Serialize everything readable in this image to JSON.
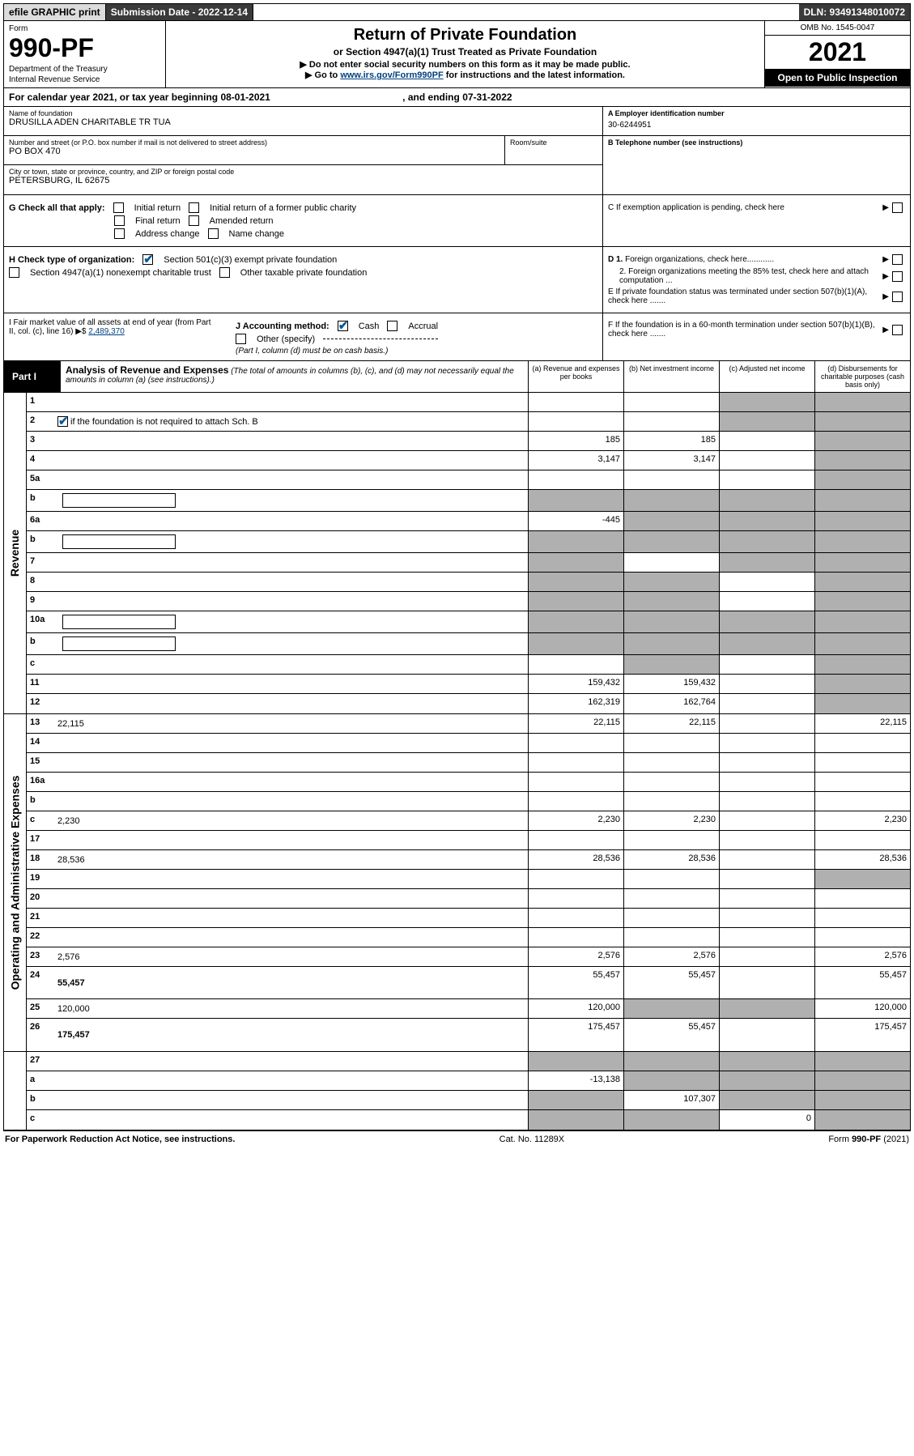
{
  "topbar": {
    "efile": "efile GRAPHIC print",
    "submission_label": "Submission Date - 2022-12-14",
    "dln": "DLN: 93491348010072"
  },
  "header": {
    "form_word": "Form",
    "form_number": "990-PF",
    "dept": "Department of the Treasury",
    "irs": "Internal Revenue Service",
    "title": "Return of Private Foundation",
    "subtitle": "or Section 4947(a)(1) Trust Treated as Private Foundation",
    "warn": "▶ Do not enter social security numbers on this form as it may be made public.",
    "goto_pre": "▶ Go to ",
    "goto_link": "www.irs.gov/Form990PF",
    "goto_post": " for instructions and the latest information.",
    "omb": "OMB No. 1545-0047",
    "year": "2021",
    "open": "Open to Public Inspection"
  },
  "cal_year": {
    "pre": "For calendar year 2021, or tax year beginning ",
    "begin": "08-01-2021",
    "mid": " , and ending ",
    "end": "07-31-2022"
  },
  "entity": {
    "name_lbl": "Name of foundation",
    "name": "DRUSILLA ADEN CHARITABLE TR TUA",
    "addr_lbl": "Number and street (or P.O. box number if mail is not delivered to street address)",
    "addr": "PO BOX 470",
    "room_lbl": "Room/suite",
    "room": "",
    "city_lbl": "City or town, state or province, country, and ZIP or foreign postal code",
    "city": "PETERSBURG, IL  62675",
    "ein_lbl": "A Employer identification number",
    "ein": "30-6244951",
    "phone_lbl": "B Telephone number (see instructions)",
    "phone": "",
    "c_lbl": "C If exemption application is pending, check here",
    "d1": "D 1. Foreign organizations, check here............",
    "d2": "2. Foreign organizations meeting the 85% test, check here and attach computation ...",
    "e_lbl": "E  If private foundation status was terminated under section 507(b)(1)(A), check here .......",
    "f_lbl": "F  If the foundation is in a 60-month termination under section 507(b)(1)(B), check here .......",
    "g_lbl": "G Check all that apply:",
    "g_opts": [
      "Initial return",
      "Initial return of a former public charity",
      "Final return",
      "Amended return",
      "Address change",
      "Name change"
    ],
    "h_lbl": "H Check type of organization:",
    "h_opts": [
      "Section 501(c)(3) exempt private foundation",
      "Section 4947(a)(1) nonexempt charitable trust",
      "Other taxable private foundation"
    ],
    "i_lbl": "I Fair market value of all assets at end of year (from Part II, col. (c), line 16) ▶$ ",
    "i_val": "2,489,370",
    "j_lbl": "J Accounting method:",
    "j_cash": "Cash",
    "j_accr": "Accrual",
    "j_other": "Other (specify)",
    "j_note": "(Part I, column (d) must be on cash basis.)"
  },
  "part1": {
    "label": "Part I",
    "title": "Analysis of Revenue and Expenses",
    "note": " (The total of amounts in columns (b), (c), and (d) may not necessarily equal the amounts in column (a) (see instructions).)",
    "col_a": "(a)  Revenue and expenses per books",
    "col_b": "(b)  Net investment income",
    "col_c": "(c)  Adjusted net income",
    "col_d": "(d)  Disbursements for charitable purposes (cash basis only)"
  },
  "rows": {
    "r1": {
      "n": "1",
      "d": "",
      "a": "",
      "b": "",
      "c": "",
      "cg": true,
      "dg": true
    },
    "r2": {
      "n": "2",
      "d": "",
      "d2": " if the foundation is not required to attach Sch. B",
      "a": "",
      "b": "",
      "c": "",
      "cg": true,
      "dg": true
    },
    "r3": {
      "n": "3",
      "d": "",
      "a": "185",
      "b": "185",
      "c": "",
      "dg": true
    },
    "r4": {
      "n": "4",
      "d": "",
      "a": "3,147",
      "b": "3,147",
      "c": "",
      "dg": true
    },
    "r5a": {
      "n": "5a",
      "d": "",
      "a": "",
      "b": "",
      "c": "",
      "dg": true
    },
    "r5b": {
      "n": "b",
      "d": "",
      "a": "",
      "b": "",
      "c": "",
      "ag": true,
      "bg": true,
      "cg": true,
      "dg": true,
      "box": true
    },
    "r6a": {
      "n": "6a",
      "d": "",
      "a": "-445",
      "b": "",
      "c": "",
      "bg": true,
      "cg": true,
      "dg": true
    },
    "r6b": {
      "n": "b",
      "d": "",
      "a": "",
      "b": "",
      "c": "",
      "ag": true,
      "bg": true,
      "cg": true,
      "dg": true,
      "box": true
    },
    "r7": {
      "n": "7",
      "d": "",
      "a": "",
      "b": "",
      "c": "",
      "ag": true,
      "cg": true,
      "dg": true
    },
    "r8": {
      "n": "8",
      "d": "",
      "a": "",
      "b": "",
      "c": "",
      "ag": true,
      "bg": true,
      "dg": true
    },
    "r9": {
      "n": "9",
      "d": "",
      "a": "",
      "b": "",
      "c": "",
      "ag": true,
      "bg": true,
      "dg": true
    },
    "r10a": {
      "n": "10a",
      "d": "",
      "a": "",
      "b": "",
      "c": "",
      "ag": true,
      "bg": true,
      "cg": true,
      "dg": true,
      "box": true
    },
    "r10b": {
      "n": "b",
      "d": "",
      "a": "",
      "b": "",
      "c": "",
      "ag": true,
      "bg": true,
      "cg": true,
      "dg": true,
      "box": true
    },
    "r10c": {
      "n": "c",
      "d": "",
      "a": "",
      "b": "",
      "c": "",
      "bg": true,
      "dg": true
    },
    "r11": {
      "n": "11",
      "d": "",
      "a": "159,432",
      "b": "159,432",
      "c": "",
      "dg": true
    },
    "r12": {
      "n": "12",
      "d": "",
      "a": "162,319",
      "b": "162,764",
      "c": "",
      "dg": true,
      "bold": true
    },
    "r13": {
      "n": "13",
      "d": "22,115",
      "a": "22,115",
      "b": "22,115",
      "c": ""
    },
    "r14": {
      "n": "14",
      "d": "",
      "a": "",
      "b": "",
      "c": ""
    },
    "r15": {
      "n": "15",
      "d": "",
      "a": "",
      "b": "",
      "c": ""
    },
    "r16a": {
      "n": "16a",
      "d": "",
      "a": "",
      "b": "",
      "c": ""
    },
    "r16b": {
      "n": "b",
      "d": "",
      "a": "",
      "b": "",
      "c": ""
    },
    "r16c": {
      "n": "c",
      "d": "2,230",
      "a": "2,230",
      "b": "2,230",
      "c": ""
    },
    "r17": {
      "n": "17",
      "d": "",
      "a": "",
      "b": "",
      "c": ""
    },
    "r18": {
      "n": "18",
      "d": "28,536",
      "a": "28,536",
      "b": "28,536",
      "c": ""
    },
    "r19": {
      "n": "19",
      "d": "",
      "a": "",
      "b": "",
      "c": "",
      "dg": true
    },
    "r20": {
      "n": "20",
      "d": "",
      "a": "",
      "b": "",
      "c": ""
    },
    "r21": {
      "n": "21",
      "d": "",
      "a": "",
      "b": "",
      "c": ""
    },
    "r22": {
      "n": "22",
      "d": "",
      "a": "",
      "b": "",
      "c": ""
    },
    "r23": {
      "n": "23",
      "d": "2,576",
      "a": "2,576",
      "b": "2,576",
      "c": ""
    },
    "r24": {
      "n": "24",
      "d": "55,457",
      "a": "55,457",
      "b": "55,457",
      "c": "",
      "bold": true,
      "tall": true
    },
    "r25": {
      "n": "25",
      "d": "120,000",
      "a": "120,000",
      "b": "",
      "c": "",
      "bg": true,
      "cg": true
    },
    "r26": {
      "n": "26",
      "d": "175,457",
      "a": "175,457",
      "b": "55,457",
      "c": "",
      "bold": true,
      "tall": true
    },
    "r27": {
      "n": "27",
      "d": "",
      "a": "",
      "b": "",
      "c": "",
      "ag": true,
      "bg": true,
      "cg": true,
      "dg": true
    },
    "r27a": {
      "n": "a",
      "d": "",
      "a": "-13,138",
      "b": "",
      "c": "",
      "bg": true,
      "cg": true,
      "dg": true,
      "bold": true
    },
    "r27b": {
      "n": "b",
      "d": "",
      "a": "",
      "b": "107,307",
      "c": "",
      "ag": true,
      "cg": true,
      "dg": true,
      "bold": true
    },
    "r27c": {
      "n": "c",
      "d": "",
      "a": "",
      "b": "",
      "c": "0",
      "ag": true,
      "bg": true,
      "dg": true,
      "bold": true
    }
  },
  "sides": {
    "revenue": "Revenue",
    "expenses": "Operating and Administrative Expenses"
  },
  "footer": {
    "left": "For Paperwork Reduction Act Notice, see instructions.",
    "mid": "Cat. No. 11289X",
    "right": "Form 990-PF (2021)"
  }
}
